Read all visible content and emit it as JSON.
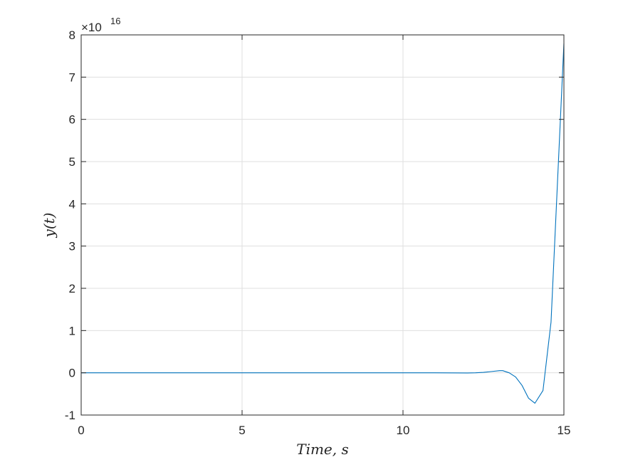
{
  "chart_data": {
    "type": "line",
    "title": "",
    "xlabel": "Time, s",
    "ylabel": "y(t)",
    "xlim": [
      0,
      15
    ],
    "ylim": [
      -1,
      8
    ],
    "y_scale_exponent": "16",
    "y_scale_prefix": "×10",
    "grid": true,
    "xticks": [
      0,
      5,
      10,
      15
    ],
    "xtick_labels": [
      "0",
      "5",
      "10",
      "15"
    ],
    "yticks": [
      -1,
      0,
      1,
      2,
      3,
      4,
      5,
      6,
      7,
      8
    ],
    "ytick_labels": [
      "-1",
      "0",
      "1",
      "2",
      "3",
      "4",
      "5",
      "6",
      "7",
      "8"
    ],
    "series": [
      {
        "color": "#0072BD",
        "x": [
          0,
          1,
          2,
          3,
          4,
          5,
          6,
          7,
          8,
          9,
          10,
          11,
          11.5,
          12,
          12.25,
          12.5,
          12.75,
          13.0,
          13.1,
          13.3,
          13.5,
          13.7,
          13.9,
          14.1,
          14.35,
          14.6,
          14.8,
          15.0
        ],
        "y": [
          0,
          0,
          0,
          0,
          0,
          0,
          0,
          0,
          0,
          0,
          0,
          0,
          -0.002,
          -0.005,
          0,
          0.01,
          0.03,
          0.05,
          0.05,
          0.0,
          -0.1,
          -0.3,
          -0.6,
          -0.72,
          -0.42,
          1.2,
          4.5,
          7.8
        ]
      }
    ]
  }
}
